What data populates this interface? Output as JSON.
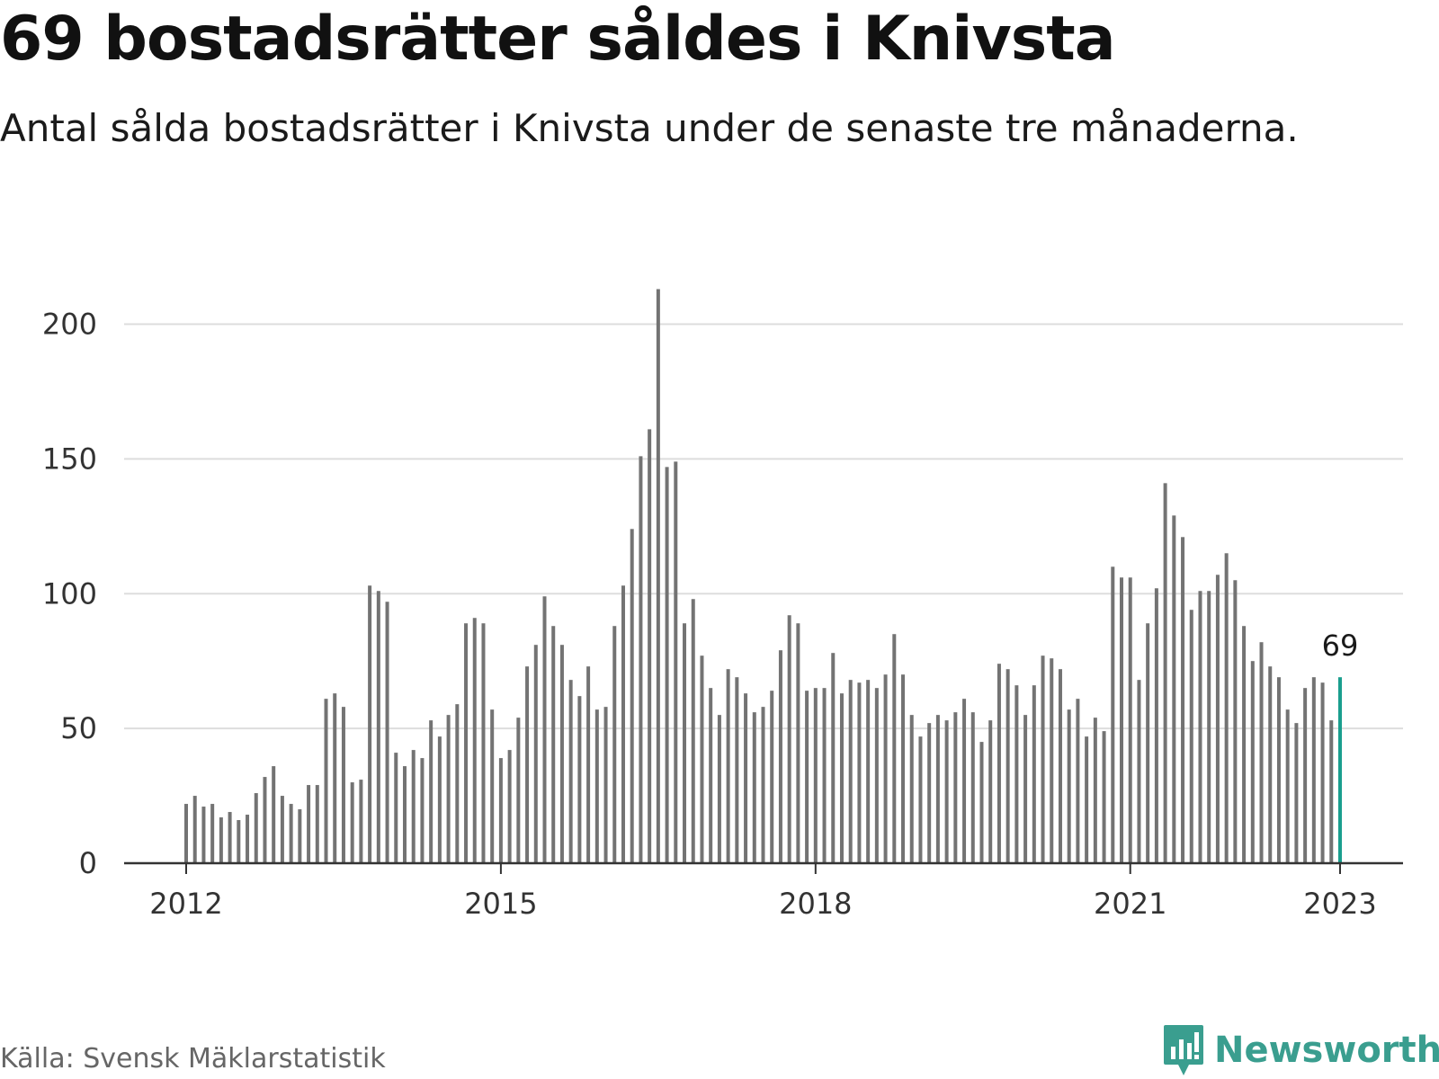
{
  "title": "69 bostadsrätter såldes i Knivsta",
  "subtitle": "Antal sålda bostadsrätter i Knivsta under de senaste tre månaderna.",
  "source": "Källa: Svensk Mäklarstatistik",
  "brand": {
    "name": "Newsworthy",
    "icon": "newsworthy-logo-icon",
    "color": "#3a9e8f"
  },
  "colors": {
    "bar": "#737373",
    "highlight": "#1a9e8e",
    "grid": "#dddddd",
    "axis": "#333333"
  },
  "chart_data": {
    "type": "bar",
    "title": "69 bostadsrätter såldes i Knivsta",
    "subtitle": "Antal sålda bostadsrätter i Knivsta under de senaste tre månaderna.",
    "xlabel": "",
    "ylabel": "",
    "x_start": "2012-01",
    "x_end": "2023-01",
    "frequency": "monthly",
    "x_ticks": [
      "2012",
      "2015",
      "2018",
      "2021",
      "2023"
    ],
    "y_ticks": [
      0,
      50,
      100,
      150,
      200
    ],
    "ylim": [
      0,
      213
    ],
    "grid": true,
    "values": [
      22,
      25,
      21,
      22,
      17,
      19,
      16,
      18,
      26,
      32,
      36,
      25,
      22,
      20,
      29,
      29,
      61,
      63,
      58,
      30,
      31,
      103,
      101,
      97,
      41,
      36,
      42,
      39,
      53,
      47,
      55,
      59,
      89,
      91,
      89,
      57,
      39,
      42,
      54,
      73,
      81,
      99,
      88,
      81,
      68,
      62,
      73,
      57,
      58,
      88,
      103,
      124,
      151,
      161,
      213,
      147,
      149,
      89,
      98,
      77,
      65,
      55,
      72,
      69,
      63,
      56,
      58,
      64,
      79,
      92,
      89,
      64,
      65,
      65,
      78,
      63,
      68,
      67,
      68,
      65,
      70,
      85,
      70,
      55,
      47,
      52,
      55,
      53,
      56,
      61,
      56,
      45,
      53,
      74,
      72,
      66,
      55,
      66,
      77,
      76,
      72,
      57,
      61,
      47,
      54,
      49,
      110,
      106,
      106,
      68,
      89,
      102,
      141,
      129,
      121,
      94,
      101,
      101,
      107,
      115,
      105,
      88,
      75,
      82,
      73,
      69,
      57,
      52,
      65,
      69,
      67,
      53,
      69
    ],
    "highlight": {
      "x": "2023-01",
      "value": 69,
      "label": "69"
    }
  }
}
